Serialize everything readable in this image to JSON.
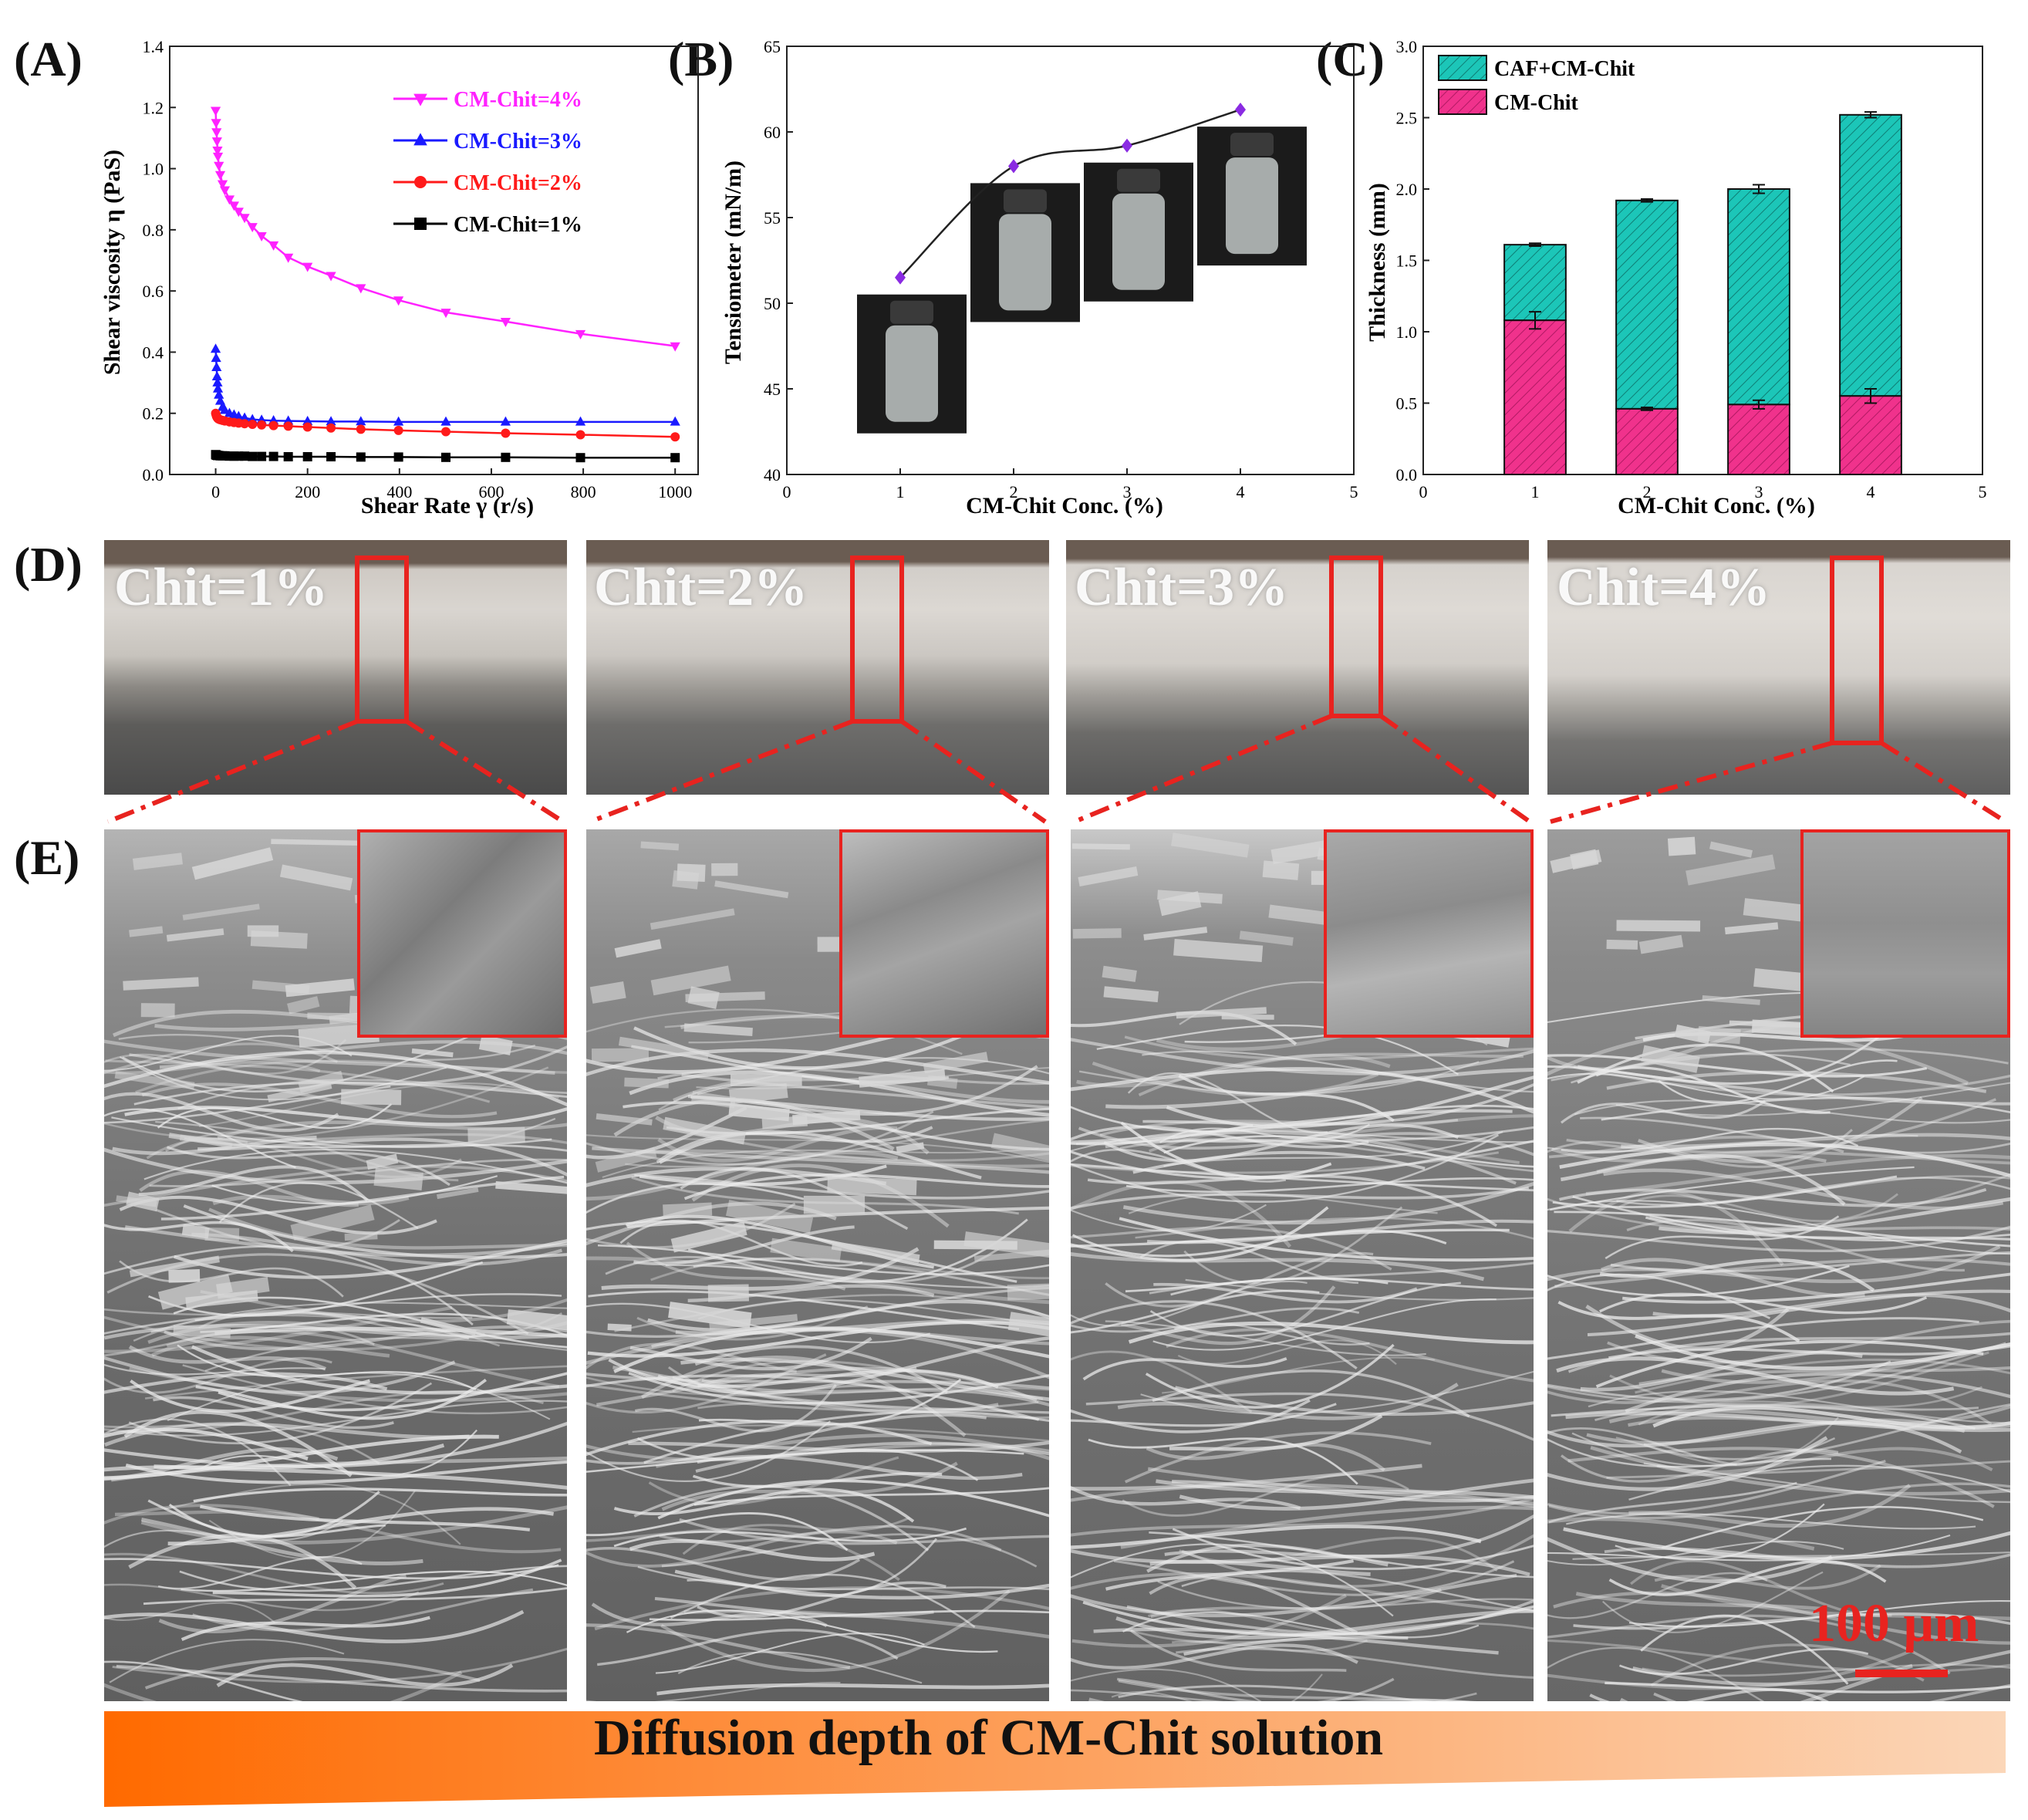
{
  "panels": {
    "A": {
      "letter": "(A)"
    },
    "B": {
      "letter": "(B)"
    },
    "C": {
      "letter": "(C)"
    },
    "D": {
      "letter": "(D)"
    },
    "E": {
      "letter": "(E)"
    }
  },
  "chart_data": [
    {
      "type": "line",
      "panel": "A",
      "xlabel": "Shear Rate γ (r/s)",
      "ylabel": "Shear viscosity η (PaS)",
      "xlim": [
        -100,
        1050
      ],
      "ylim": [
        0.0,
        1.4
      ],
      "xticks": [
        "0",
        "200",
        "400",
        "600",
        "800",
        "1000"
      ],
      "yticks": [
        "0.0",
        "0.2",
        "0.4",
        "0.6",
        "0.8",
        "1.0",
        "1.2",
        "1.4"
      ],
      "legend_position": "top-right",
      "series": [
        {
          "name": "CM-Chit=4%",
          "color": "#ff22ff",
          "marker": "triangle-down",
          "x": [
            0,
            1,
            2,
            3,
            4,
            5,
            7,
            10,
            15,
            20,
            30,
            40,
            50,
            63,
            80,
            100,
            126,
            158,
            200,
            251,
            316,
            398,
            501,
            631,
            794,
            1000
          ],
          "y": [
            1.19,
            1.15,
            1.12,
            1.09,
            1.06,
            1.04,
            1.01,
            0.98,
            0.95,
            0.93,
            0.9,
            0.88,
            0.86,
            0.84,
            0.81,
            0.78,
            0.75,
            0.71,
            0.68,
            0.65,
            0.61,
            0.57,
            0.53,
            0.5,
            0.46,
            0.42
          ]
        },
        {
          "name": "CM-Chit=3%",
          "color": "#1a1aff",
          "marker": "triangle-up",
          "x": [
            0,
            1,
            2,
            3,
            4,
            5,
            7,
            10,
            15,
            20,
            30,
            40,
            50,
            63,
            80,
            100,
            126,
            158,
            200,
            251,
            316,
            398,
            501,
            631,
            794,
            1000
          ],
          "y": [
            0.41,
            0.38,
            0.35,
            0.32,
            0.3,
            0.28,
            0.26,
            0.24,
            0.22,
            0.21,
            0.2,
            0.195,
            0.19,
            0.185,
            0.18,
            0.178,
            0.176,
            0.175,
            0.174,
            0.173,
            0.173,
            0.172,
            0.172,
            0.172,
            0.172,
            0.172
          ]
        },
        {
          "name": "CM-Chit=2%",
          "color": "#ff1a1a",
          "marker": "circle",
          "x": [
            0,
            1,
            2,
            3,
            4,
            5,
            7,
            10,
            15,
            20,
            30,
            40,
            50,
            63,
            80,
            100,
            126,
            158,
            200,
            251,
            316,
            398,
            501,
            631,
            794,
            1000
          ],
          "y": [
            0.2,
            0.195,
            0.19,
            0.187,
            0.185,
            0.183,
            0.181,
            0.179,
            0.177,
            0.175,
            0.172,
            0.17,
            0.168,
            0.166,
            0.164,
            0.162,
            0.16,
            0.158,
            0.155,
            0.152,
            0.148,
            0.144,
            0.14,
            0.135,
            0.13,
            0.123
          ]
        },
        {
          "name": "CM-Chit=1%",
          "color": "#000000",
          "marker": "square",
          "x": [
            0,
            1,
            2,
            3,
            4,
            5,
            7,
            10,
            15,
            20,
            30,
            40,
            50,
            63,
            80,
            100,
            126,
            158,
            200,
            251,
            316,
            398,
            501,
            631,
            794,
            1000
          ],
          "y": [
            0.065,
            0.064,
            0.063,
            0.063,
            0.062,
            0.062,
            0.062,
            0.061,
            0.061,
            0.061,
            0.06,
            0.06,
            0.06,
            0.06,
            0.059,
            0.059,
            0.059,
            0.058,
            0.058,
            0.058,
            0.057,
            0.057,
            0.056,
            0.056,
            0.055,
            0.055
          ]
        }
      ]
    },
    {
      "type": "line",
      "panel": "B",
      "xlabel": "CM-Chit Conc. (%)",
      "ylabel": "Tensiometer (mN/m)",
      "xlim": [
        0,
        5
      ],
      "ylim": [
        40,
        65
      ],
      "xticks": [
        "0",
        "1",
        "2",
        "3",
        "4",
        "5"
      ],
      "yticks": [
        "40",
        "45",
        "50",
        "55",
        "60",
        "65"
      ],
      "series": [
        {
          "color": "#8a2be2",
          "marker": "diamond",
          "x": [
            1,
            2,
            3,
            4
          ],
          "y": [
            51.5,
            58.0,
            59.2,
            61.3
          ]
        }
      ]
    },
    {
      "type": "bar",
      "panel": "C",
      "stacked": true,
      "xlabel": "CM-Chit Conc. (%)",
      "ylabel": "Thickness (mm)",
      "xlim": [
        0,
        5
      ],
      "ylim": [
        0.0,
        3.0
      ],
      "xticks": [
        "0",
        "1",
        "2",
        "3",
        "4",
        "5"
      ],
      "yticks": [
        "0.0",
        "0.5",
        "1.0",
        "1.5",
        "2.0",
        "2.5",
        "3.0"
      ],
      "legend_position": "top-left",
      "categories": [
        "1",
        "2",
        "3",
        "4"
      ],
      "series": [
        {
          "name": "CM-Chit",
          "color": "#f0328c",
          "values": [
            1.08,
            0.46,
            0.49,
            0.55
          ],
          "error": [
            0.06,
            0.01,
            0.03,
            0.05
          ]
        },
        {
          "name": "CAF+CM-Chit",
          "color": "#1cc6b8",
          "totals": [
            1.61,
            1.92,
            2.0,
            2.52
          ],
          "error": [
            0.01,
            0.01,
            0.03,
            0.02
          ]
        }
      ]
    }
  ],
  "photos": [
    {
      "label": "Chit=1%"
    },
    {
      "label": "Chit=2%"
    },
    {
      "label": "Chit=3%"
    },
    {
      "label": "Chit=4%"
    }
  ],
  "scale_bar": {
    "label": "100 μm"
  },
  "diffusion_arrow": {
    "label": "Diffusion depth of CM-Chit solution"
  },
  "colors": {
    "accent_red": "#e8231f",
    "arrow_start": "#ff6a00",
    "arrow_end": "#fbd6b8"
  }
}
